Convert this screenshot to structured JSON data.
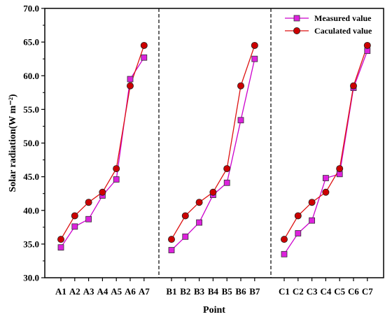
{
  "chart_data": {
    "type": "line",
    "xlabel": "Point",
    "ylabel": "Solar radiation(W m⁻²)",
    "ylim": [
      30.0,
      70.0
    ],
    "yticks": [
      "30.0",
      "35.0",
      "40.0",
      "45.0",
      "50.0",
      "55.0",
      "60.0",
      "65.0",
      "70.0"
    ],
    "categories": [
      "A1",
      "A2",
      "A3",
      "A4",
      "A5",
      "A6",
      "A7",
      "B1",
      "B2",
      "B3",
      "B4",
      "B5",
      "B6",
      "B7",
      "C1",
      "C2",
      "C3",
      "C4",
      "C5",
      "C6",
      "C7"
    ],
    "groups": [
      "A",
      "B",
      "C"
    ],
    "legend_position": "top-right",
    "grid": false,
    "series": [
      {
        "name": "Measured value",
        "marker": "square",
        "color": "#cc00cc",
        "fill": "#dd22dd",
        "values": [
          34.5,
          37.6,
          38.7,
          42.2,
          44.6,
          59.5,
          62.7,
          34.1,
          36.1,
          38.2,
          42.3,
          44.1,
          53.4,
          62.5,
          33.5,
          36.6,
          38.5,
          44.8,
          45.4,
          58.2,
          63.7
        ]
      },
      {
        "name": "Caculated value",
        "marker": "circle",
        "color": "#dd1111",
        "fill": "#cc0000",
        "values": [
          35.7,
          39.2,
          41.2,
          42.7,
          46.2,
          58.5,
          64.5,
          35.7,
          39.2,
          41.2,
          42.7,
          46.2,
          58.5,
          64.5,
          35.7,
          39.2,
          41.2,
          42.7,
          46.2,
          58.5,
          64.5
        ]
      }
    ]
  }
}
